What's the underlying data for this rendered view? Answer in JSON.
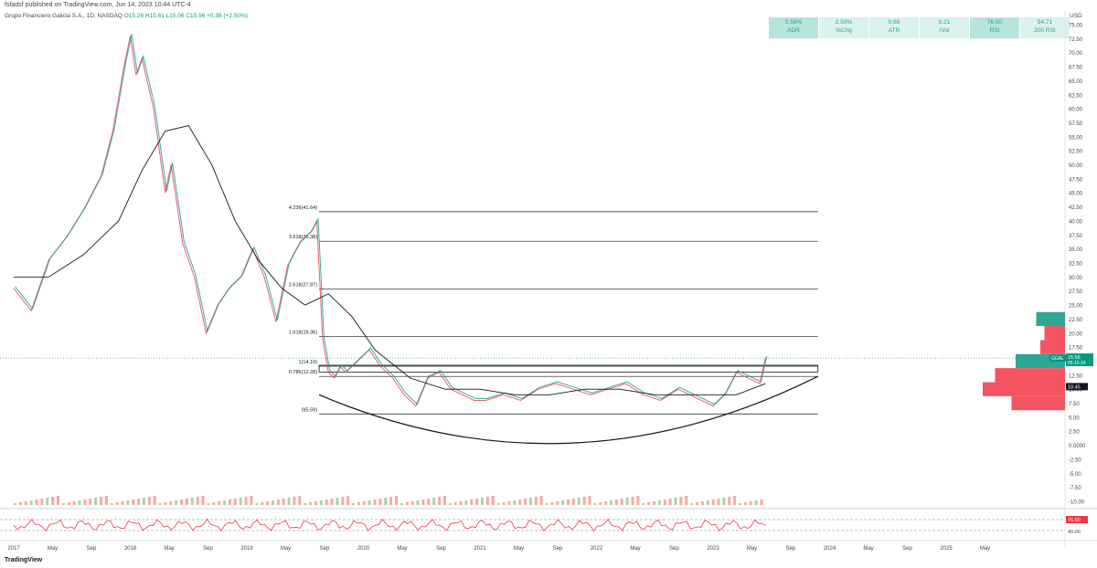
{
  "header": {
    "published": "fsfadsf published on TradingView.com, Jun 14, 2023 10:44 UTC-4",
    "symbol_line": "Grupo Financiero Galicia S.A., 1D, NASDAQ",
    "ohlc": "O15.26  H15.61  L15.06  C15.56  +0.38 (+2.50%)"
  },
  "stats": [
    {
      "value": "5.58%",
      "label": "ADR",
      "style": "dark"
    },
    {
      "value": "2.50%",
      "label": "%Chg",
      "style": "light"
    },
    {
      "value": "0.69",
      "label": "ATR",
      "style": "light"
    },
    {
      "value": "0.21",
      "label": "rVol",
      "style": "light"
    },
    {
      "value": "76.50",
      "label": "RSI",
      "style": "dark"
    },
    {
      "value": "54.71",
      "label": "200 RSI",
      "style": "light"
    }
  ],
  "footer": {
    "brand": "TradingView"
  },
  "chart_data": {
    "type": "line",
    "title": "Grupo Financiero Galicia S.A., 1D, NASDAQ",
    "currency": "USD",
    "y_ticks": [
      "75.00",
      "72.50",
      "70.00",
      "67.50",
      "65.00",
      "62.50",
      "60.00",
      "57.50",
      "55.00",
      "52.50",
      "50.00",
      "47.50",
      "45.00",
      "42.50",
      "40.00",
      "37.50",
      "35.00",
      "32.50",
      "30.00",
      "27.50",
      "25.00",
      "22.50",
      "20.00",
      "17.50",
      "15.00",
      "12.50",
      "10.00",
      "7.50",
      "5.00",
      "2.50",
      "0.0000",
      "-2.50",
      "-5.00",
      "-7.50",
      "-10.00"
    ],
    "ylim": [
      -10,
      75
    ],
    "x_ticks": [
      "2017",
      "May",
      "Sep",
      "2018",
      "May",
      "Sep",
      "2019",
      "May",
      "Sep",
      "2020",
      "May",
      "Sep",
      "2021",
      "May",
      "Sep",
      "2022",
      "May",
      "Sep",
      "2023",
      "May",
      "Sep",
      "2024",
      "May",
      "Sep",
      "2025",
      "May"
    ],
    "price_series": {
      "name": "GGAL",
      "x": [
        2017.0,
        2017.15,
        2017.3,
        2017.45,
        2017.6,
        2017.75,
        2017.85,
        2017.95,
        2018.0,
        2018.05,
        2018.1,
        2018.2,
        2018.3,
        2018.35,
        2018.45,
        2018.55,
        2018.65,
        2018.75,
        2018.85,
        2018.95,
        2019.05,
        2019.15,
        2019.25,
        2019.35,
        2019.45,
        2019.55,
        2019.6,
        2019.65,
        2019.7,
        2019.75,
        2019.8,
        2019.85,
        2019.95,
        2020.05,
        2020.15,
        2020.25,
        2020.35,
        2020.45,
        2020.55,
        2020.65,
        2020.75,
        2020.85,
        2020.95,
        2021.05,
        2021.2,
        2021.35,
        2021.5,
        2021.65,
        2021.8,
        2021.95,
        2022.1,
        2022.25,
        2022.4,
        2022.55,
        2022.7,
        2022.8,
        2022.9,
        2023.0,
        2023.1,
        2023.2,
        2023.3,
        2023.4,
        2023.45
      ],
      "y": [
        28,
        24,
        33,
        37,
        42,
        48,
        56,
        68,
        73,
        66,
        69,
        60,
        45,
        50,
        36,
        30,
        20,
        25,
        28,
        30,
        35,
        30,
        22,
        32,
        36,
        38,
        40,
        19,
        13,
        12,
        14,
        13,
        15,
        17,
        14,
        12,
        9,
        7,
        12,
        13,
        10,
        9,
        8,
        8,
        9,
        8,
        10,
        11,
        10,
        9,
        10,
        11,
        9,
        8,
        10,
        9,
        8,
        7,
        9,
        13,
        12,
        11,
        15.56
      ]
    },
    "moving_average_200": {
      "x": [
        2017.0,
        2017.3,
        2017.6,
        2017.9,
        2018.1,
        2018.3,
        2018.5,
        2018.7,
        2018.9,
        2019.1,
        2019.3,
        2019.5,
        2019.7,
        2019.9,
        2020.1,
        2020.4,
        2020.7,
        2021.0,
        2021.3,
        2021.6,
        2021.9,
        2022.2,
        2022.5,
        2022.8,
        2023.0,
        2023.2,
        2023.45
      ],
      "y": [
        30,
        30,
        34,
        40,
        49,
        56,
        57,
        50,
        40,
        33,
        28,
        25,
        27,
        23,
        17,
        12,
        10,
        10,
        9,
        9,
        10,
        10,
        9,
        9,
        9,
        9,
        11
      ]
    },
    "fibonacci_levels": [
      {
        "label": "4.236(41.64)",
        "value": 41.64
      },
      {
        "label": "3.618(36.38)",
        "value": 36.38
      },
      {
        "label": "2.618(27.87)",
        "value": 27.87
      },
      {
        "label": "1.618(19.36)",
        "value": 19.36
      },
      {
        "label": "1(14.10)",
        "value": 14.1
      },
      {
        "label": "0.786(12.28)",
        "value": 12.28
      },
      {
        "label": "0(5.59)",
        "value": 5.59
      }
    ],
    "price_labels": {
      "last": {
        "symbol": "GGAL",
        "value": "15.56",
        "countdown": "05:15:14"
      },
      "ma": {
        "value": "10.45"
      }
    },
    "volume_profile": [
      {
        "price": 22.5,
        "value": 0.35,
        "color": "#089981"
      },
      {
        "price": 20.0,
        "value": 0.25,
        "color": "#f23645"
      },
      {
        "price": 17.5,
        "value": 0.3,
        "color": "#f23645"
      },
      {
        "price": 15.0,
        "value": 0.6,
        "color": "#089981"
      },
      {
        "price": 12.5,
        "value": 0.85,
        "color": "#f23645"
      },
      {
        "price": 10.0,
        "value": 1.0,
        "color": "#f23645"
      },
      {
        "price": 7.5,
        "value": 0.65,
        "color": "#f23645"
      }
    ],
    "rsi": {
      "label": "RSI",
      "value": "76.50",
      "level": "40.00"
    },
    "colors": {
      "up": "#089981",
      "down": "#f23645",
      "ma": "#131722",
      "fib": "#131722",
      "rsi": "#f23645"
    }
  }
}
